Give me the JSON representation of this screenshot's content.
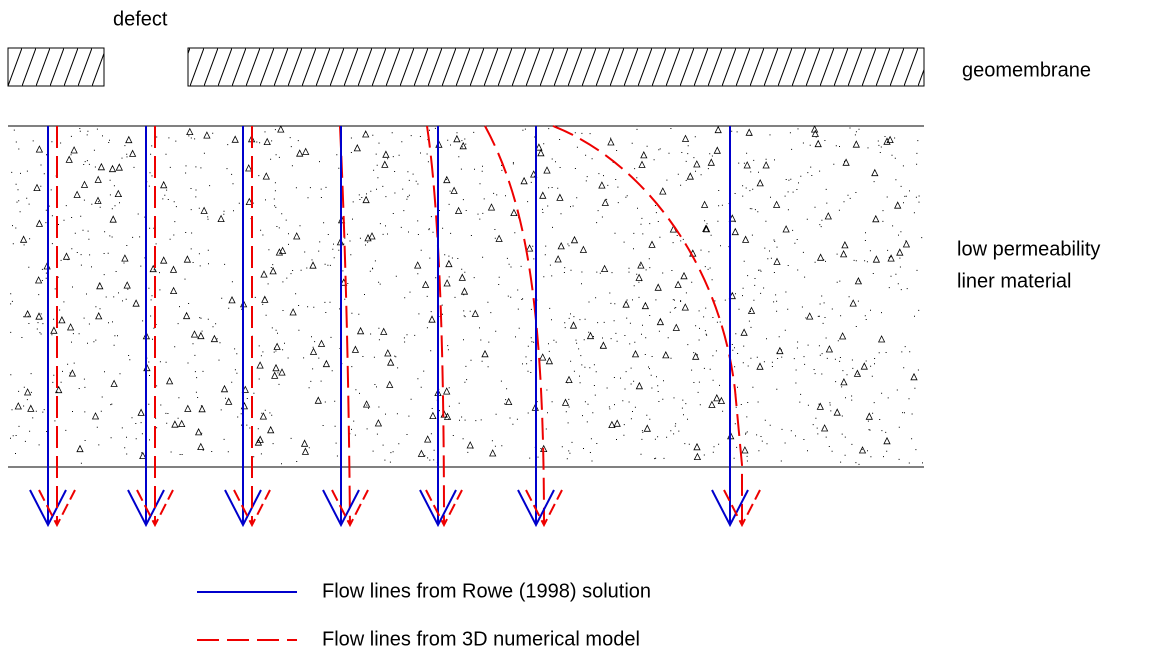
{
  "labels": {
    "defect": "defect",
    "geomembrane": "geomembrane",
    "liner": [
      "low permeability",
      "liner material"
    ]
  },
  "legend": [
    "Flow lines from Rowe (1998) solution",
    "Flow lines from 3D numerical model"
  ]
}
